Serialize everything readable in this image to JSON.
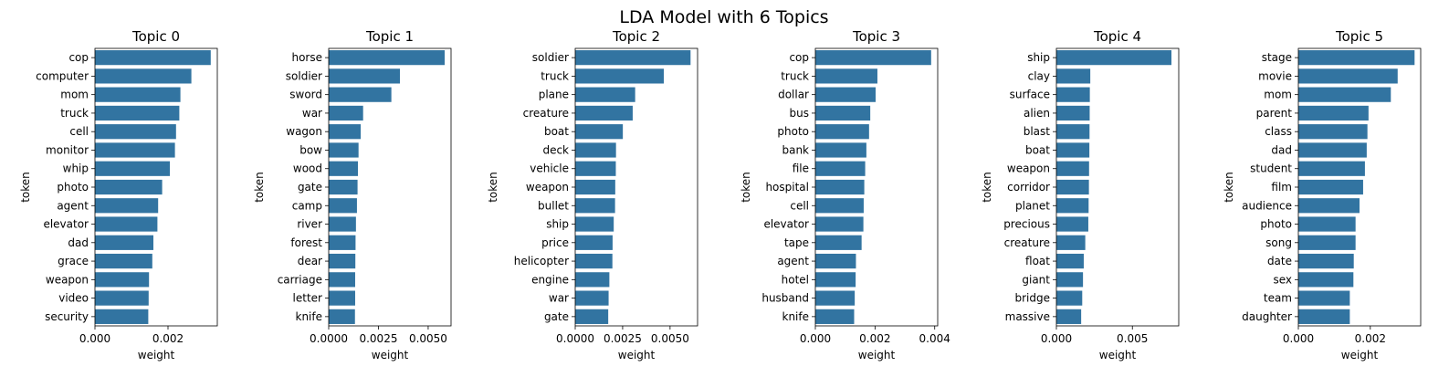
{
  "figure": {
    "title": "LDA Model with 6 Topics"
  },
  "chart_data": [
    {
      "type": "bar",
      "orientation": "horizontal",
      "title": "Topic 0",
      "xlabel": "weight",
      "ylabel": "token",
      "xlim": [
        0,
        0.00335
      ],
      "xticks": [
        "0.000",
        "0.002"
      ],
      "xtick_values": [
        0,
        0.002
      ],
      "color": "#3274a1",
      "categories": [
        "cop",
        "computer",
        "mom",
        "truck",
        "cell",
        "monitor",
        "whip",
        "photo",
        "agent",
        "elevator",
        "dad",
        "grace",
        "weapon",
        "video",
        "security"
      ],
      "values": [
        0.00317,
        0.00264,
        0.00234,
        0.00231,
        0.00222,
        0.00219,
        0.00205,
        0.00184,
        0.00173,
        0.00171,
        0.0016,
        0.00157,
        0.00148,
        0.00147,
        0.00146
      ]
    },
    {
      "type": "bar",
      "orientation": "horizontal",
      "title": "Topic 1",
      "xlabel": "weight",
      "ylabel": "token",
      "xlim": [
        0,
        0.00615
      ],
      "xticks": [
        "0.0000",
        "0.0025",
        "0.0050"
      ],
      "xtick_values": [
        0,
        0.0025,
        0.005
      ],
      "color": "#3274a1",
      "categories": [
        "horse",
        "soldier",
        "sword",
        "war",
        "wagon",
        "bow",
        "wood",
        "gate",
        "camp",
        "river",
        "forest",
        "dear",
        "carriage",
        "letter",
        "knife"
      ],
      "values": [
        0.00583,
        0.00358,
        0.00315,
        0.00173,
        0.00161,
        0.0015,
        0.00147,
        0.00145,
        0.00142,
        0.00137,
        0.00135,
        0.00134,
        0.00133,
        0.00133,
        0.00132
      ]
    },
    {
      "type": "bar",
      "orientation": "horizontal",
      "title": "Topic 2",
      "xlabel": "weight",
      "ylabel": "token",
      "xlim": [
        0,
        0.00645
      ],
      "xticks": [
        "0.0000",
        "0.0025",
        "0.0050"
      ],
      "xtick_values": [
        0,
        0.0025,
        0.005
      ],
      "color": "#3274a1",
      "categories": [
        "soldier",
        "truck",
        "plane",
        "creature",
        "boat",
        "deck",
        "vehicle",
        "weapon",
        "bullet",
        "ship",
        "price",
        "helicopter",
        "engine",
        "war",
        "gate"
      ],
      "values": [
        0.00608,
        0.00467,
        0.00316,
        0.00303,
        0.00251,
        0.00215,
        0.00214,
        0.00211,
        0.0021,
        0.00203,
        0.00197,
        0.00196,
        0.0018,
        0.00176,
        0.00174
      ]
    },
    {
      "type": "bar",
      "orientation": "horizontal",
      "title": "Topic 3",
      "xlabel": "weight",
      "ylabel": "token",
      "xlim": [
        0,
        0.0041
      ],
      "xticks": [
        "0.000",
        "0.002",
        "0.004"
      ],
      "xtick_values": [
        0,
        0.002,
        0.004
      ],
      "color": "#3274a1",
      "categories": [
        "cop",
        "truck",
        "dollar",
        "bus",
        "photo",
        "bank",
        "file",
        "hospital",
        "cell",
        "elevator",
        "tape",
        "agent",
        "hotel",
        "husband",
        "knife"
      ],
      "values": [
        0.00388,
        0.00208,
        0.00202,
        0.00184,
        0.0018,
        0.00171,
        0.00167,
        0.00164,
        0.00162,
        0.00161,
        0.00155,
        0.00136,
        0.00135,
        0.00132,
        0.0013
      ]
    },
    {
      "type": "bar",
      "orientation": "horizontal",
      "title": "Topic 4",
      "xlabel": "weight",
      "ylabel": "token",
      "xlim": [
        0,
        0.00805
      ],
      "xticks": [
        "0.000",
        "0.005"
      ],
      "xtick_values": [
        0,
        0.005
      ],
      "color": "#3274a1",
      "categories": [
        "ship",
        "clay",
        "surface",
        "alien",
        "blast",
        "boat",
        "weapon",
        "corridor",
        "planet",
        "precious",
        "creature",
        "float",
        "giant",
        "bridge",
        "massive"
      ],
      "values": [
        0.00757,
        0.00223,
        0.0022,
        0.00219,
        0.00218,
        0.00217,
        0.00215,
        0.00214,
        0.00212,
        0.0021,
        0.0019,
        0.0018,
        0.00175,
        0.0017,
        0.00163
      ]
    },
    {
      "type": "bar",
      "orientation": "horizontal",
      "title": "Topic 5",
      "xlabel": "weight",
      "ylabel": "token",
      "xlim": [
        0,
        0.0034
      ],
      "xticks": [
        "0.000",
        "0.002"
      ],
      "xtick_values": [
        0,
        0.002
      ],
      "color": "#3274a1",
      "categories": [
        "stage",
        "movie",
        "mom",
        "parent",
        "class",
        "dad",
        "student",
        "film",
        "audience",
        "photo",
        "song",
        "date",
        "sex",
        "team",
        "daughter"
      ],
      "values": [
        0.00323,
        0.00276,
        0.00257,
        0.00195,
        0.00192,
        0.0019,
        0.00185,
        0.0018,
        0.0017,
        0.00159,
        0.00159,
        0.00154,
        0.00153,
        0.00143,
        0.00143
      ]
    }
  ]
}
